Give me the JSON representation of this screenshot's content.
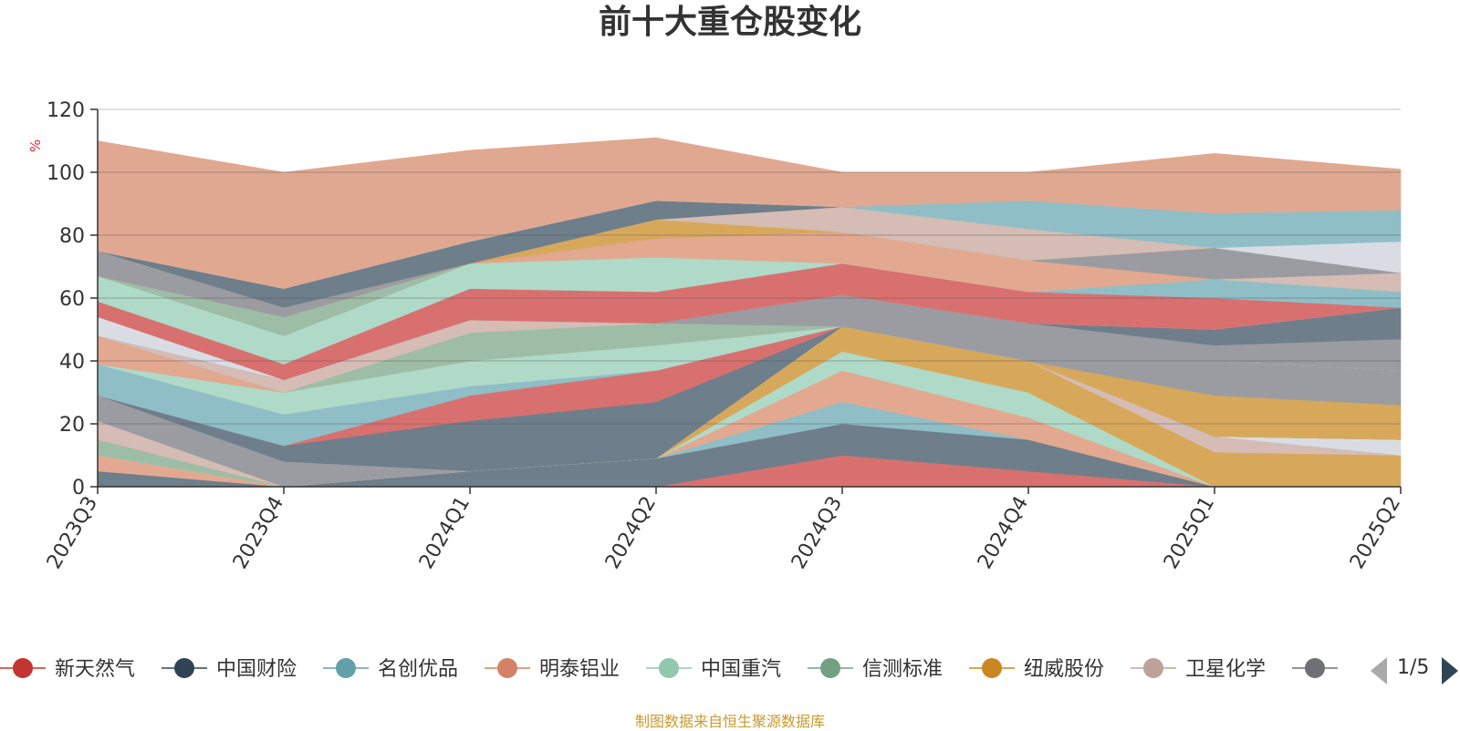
{
  "chart_data": {
    "type": "area",
    "stacked": true,
    "title": "前十大重仓股变化",
    "ylabel": "%",
    "ylim": [
      0,
      120
    ],
    "yticks": [
      0,
      20,
      40,
      60,
      80,
      100,
      120
    ],
    "grid": true,
    "legend_position": "bottom",
    "categories": [
      "2023Q3",
      "2023Q4",
      "2024Q1",
      "2024Q2",
      "2024Q3",
      "2024Q4",
      "2025Q1",
      "2025Q2"
    ],
    "series": [
      {
        "name": "新天然气",
        "color": "#d97070",
        "values": [
          0,
          0,
          0,
          0,
          10,
          5,
          0,
          0
        ]
      },
      {
        "name": "中国财险",
        "color": "#6e7e8a",
        "values": [
          5,
          0,
          5,
          9,
          10,
          10,
          0,
          0
        ]
      },
      {
        "name": "名创优品",
        "color": "#8fbec6",
        "values": [
          0,
          0,
          0,
          0,
          7,
          0,
          0,
          0
        ]
      },
      {
        "name": "明泰铝业",
        "color": "#e3a890",
        "values": [
          5,
          0,
          0,
          0,
          10,
          7,
          0,
          0
        ]
      },
      {
        "name": "中国重汽",
        "color": "#b0dac8",
        "values": [
          0,
          0,
          0,
          0,
          6,
          8,
          0,
          0
        ]
      },
      {
        "name": "信测标准",
        "color": "#9ebda6",
        "values": [
          5,
          0,
          0,
          0,
          0,
          0,
          0,
          0
        ]
      },
      {
        "name": "纽威股份",
        "color": "#d8a85a",
        "values": [
          0,
          0,
          0,
          0,
          8,
          10,
          11,
          10
        ]
      },
      {
        "name": "卫星化学",
        "color": "#d5bcb5",
        "values": [
          6,
          0,
          0,
          0,
          0,
          0,
          5,
          0
        ]
      },
      {
        "name": "",
        "color": "#9a9ca1",
        "values": [
          8,
          8,
          0,
          0,
          0,
          0,
          0,
          0
        ]
      },
      {
        "name": "",
        "color": "#d9dde3",
        "values": [
          0,
          0,
          0,
          0,
          0,
          0,
          0,
          5
        ]
      },
      {
        "name": "",
        "color": "#6e7e8a",
        "values": [
          0,
          5,
          16,
          18,
          0,
          0,
          0,
          0
        ]
      },
      {
        "name": "",
        "color": "#d97070",
        "values": [
          0,
          0,
          8,
          10,
          0,
          0,
          0,
          0
        ]
      },
      {
        "name": "",
        "color": "#8fbec6",
        "values": [
          10,
          10,
          3,
          0,
          0,
          0,
          0,
          0
        ]
      },
      {
        "name": "",
        "color": "#b0dac8",
        "values": [
          0,
          7,
          8,
          8,
          0,
          0,
          0,
          0
        ]
      },
      {
        "name": "",
        "color": "#d8a85a",
        "values": [
          0,
          0,
          0,
          0,
          0,
          0,
          13,
          11
        ]
      },
      {
        "name": "",
        "color": "#9a9ca1",
        "values": [
          0,
          0,
          0,
          0,
          0,
          0,
          11,
          11
        ]
      },
      {
        "name": "",
        "color": "#e3a890",
        "values": [
          9,
          0,
          0,
          0,
          0,
          0,
          0,
          0
        ]
      },
      {
        "name": "",
        "color": "#b0dac8",
        "values": [
          0,
          0,
          0,
          0,
          0,
          0,
          0,
          0
        ]
      },
      {
        "name": "",
        "color": "#9ebda6",
        "values": [
          0,
          0,
          9,
          7,
          0,
          0,
          0,
          0
        ]
      },
      {
        "name": "",
        "color": "#d5bcb5",
        "values": [
          0,
          4,
          4,
          0,
          0,
          0,
          0,
          0
        ]
      },
      {
        "name": "",
        "color": "#9a9ca1",
        "values": [
          0,
          0,
          0,
          0,
          10,
          12,
          5,
          10
        ]
      },
      {
        "name": "",
        "color": "#6e7e8a",
        "values": [
          0,
          0,
          0,
          0,
          0,
          0,
          5,
          10
        ]
      },
      {
        "name": "",
        "color": "#d9dde3",
        "values": [
          6,
          0,
          0,
          0,
          0,
          0,
          0,
          0
        ]
      },
      {
        "name": "",
        "color": "#d97070",
        "values": [
          5,
          5,
          10,
          10,
          10,
          10,
          10,
          0
        ]
      },
      {
        "name": "",
        "color": "#8fbec6",
        "values": [
          0,
          0,
          0,
          0,
          0,
          0,
          6,
          5
        ]
      },
      {
        "name": "",
        "color": "#b0dac8",
        "values": [
          8,
          9,
          8,
          11,
          0,
          0,
          0,
          0
        ]
      },
      {
        "name": "",
        "color": "#9ebda6",
        "values": [
          0,
          6,
          0,
          0,
          0,
          0,
          0,
          0
        ]
      },
      {
        "name": "",
        "color": "#d5bcb5",
        "values": [
          0,
          0,
          0,
          0,
          0,
          0,
          0,
          6
        ]
      },
      {
        "name": "",
        "color": "#e3a890",
        "values": [
          0,
          0,
          0,
          6,
          10,
          10,
          0,
          0
        ]
      },
      {
        "name": "",
        "color": "#9a9ca1",
        "values": [
          8,
          3,
          0,
          0,
          0,
          0,
          10,
          0
        ]
      },
      {
        "name": "",
        "color": "#d8a85a",
        "values": [
          0,
          0,
          0,
          6,
          0,
          0,
          0,
          0
        ]
      },
      {
        "name": "",
        "color": "#d5bcb5",
        "values": [
          0,
          0,
          0,
          0,
          8,
          10,
          0,
          0
        ]
      },
      {
        "name": "",
        "color": "#6e7e8a",
        "values": [
          0,
          6,
          7,
          6,
          0,
          0,
          0,
          0
        ]
      },
      {
        "name": "",
        "color": "#d9dde3",
        "values": [
          0,
          0,
          0,
          0,
          0,
          0,
          0,
          10
        ]
      },
      {
        "name": "",
        "color": "#8fbec6",
        "values": [
          0,
          0,
          0,
          0,
          0,
          9,
          11,
          10
        ]
      },
      {
        "name": "",
        "color": "#e0a891",
        "values": [
          35,
          37,
          29,
          20,
          11,
          9,
          19,
          13
        ]
      }
    ]
  },
  "legend": {
    "items": [
      {
        "label": "新天然气",
        "color": "#c23531"
      },
      {
        "label": "中国财险",
        "color": "#2f4554"
      },
      {
        "label": "名创优品",
        "color": "#61a0a8"
      },
      {
        "label": "明泰铝业",
        "color": "#d48265"
      },
      {
        "label": "中国重汽",
        "color": "#91c7ae"
      },
      {
        "label": "信测标准",
        "color": "#749f83"
      },
      {
        "label": "纽威股份",
        "color": "#ca8622"
      },
      {
        "label": "卫星化学",
        "color": "#bda29a"
      },
      {
        "label": "",
        "color": "#6e7074"
      }
    ],
    "page_text": "1/5"
  },
  "footer_text": "制图数据来自恒生聚源数据库"
}
